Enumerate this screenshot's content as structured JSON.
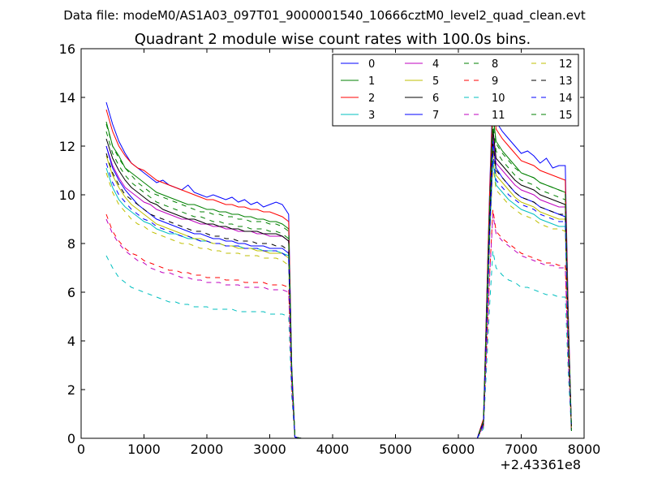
{
  "figure": {
    "suptitle": "Data file: modeM0/AS1A03_097T01_9000001540_10666cztM0_level2_quad_clean.evt"
  },
  "chart_data": {
    "type": "line",
    "title": "Quadrant 2 module wise count rates with 100.0s bins.",
    "xlabel": "",
    "ylabel": "",
    "x_offset_label": "+2.43361e8",
    "xlim": [
      0,
      8000
    ],
    "ylim": [
      0,
      16
    ],
    "x_ticks": [
      0,
      1000,
      2000,
      3000,
      4000,
      5000,
      6000,
      7000,
      8000
    ],
    "y_ticks": [
      0,
      2,
      4,
      6,
      8,
      10,
      12,
      14,
      16
    ],
    "grid": false,
    "legend_position": "top-right",
    "legend_columns": 4,
    "x": [
      400,
      500,
      600,
      700,
      800,
      900,
      1000,
      1100,
      1200,
      1300,
      1400,
      1500,
      1600,
      1700,
      1800,
      1900,
      2000,
      2100,
      2200,
      2300,
      2400,
      2500,
      2600,
      2700,
      2800,
      2900,
      3000,
      3100,
      3200,
      3300,
      3350,
      3400,
      3500,
      4000,
      5000,
      6000,
      6300,
      6400,
      6500,
      6550,
      6600,
      6700,
      6800,
      6900,
      7000,
      7100,
      7200,
      7300,
      7400,
      7500,
      7600,
      7700,
      7750,
      7800
    ],
    "series": [
      {
        "name": "0",
        "color": "#0000ff",
        "dash": "solid",
        "values": [
          13.8,
          12.9,
          12.2,
          11.7,
          11.3,
          11.1,
          10.9,
          10.7,
          10.5,
          10.6,
          10.4,
          10.3,
          10.2,
          10.4,
          10.1,
          10.0,
          9.9,
          10.0,
          9.9,
          9.8,
          9.9,
          9.7,
          9.8,
          9.6,
          9.7,
          9.5,
          9.6,
          9.7,
          9.6,
          9.2,
          3.0,
          0.05,
          0,
          0,
          0,
          0,
          0,
          0.8,
          10.5,
          14.3,
          13.0,
          12.6,
          12.3,
          12.0,
          11.7,
          11.8,
          11.6,
          11.3,
          11.5,
          11.1,
          11.2,
          11.2,
          5.0,
          0.3
        ]
      },
      {
        "name": "1",
        "color": "#008000",
        "dash": "solid",
        "values": [
          13.0,
          12.0,
          11.6,
          11.1,
          10.9,
          10.7,
          10.5,
          10.3,
          10.1,
          10.0,
          9.9,
          9.8,
          9.7,
          9.6,
          9.6,
          9.5,
          9.4,
          9.4,
          9.3,
          9.3,
          9.2,
          9.2,
          9.1,
          9.1,
          9.0,
          9.0,
          8.9,
          8.9,
          8.8,
          8.6,
          2.8,
          0.05,
          0,
          0,
          0,
          0,
          0,
          0.7,
          10.0,
          13.3,
          12.2,
          11.8,
          11.5,
          11.2,
          10.9,
          10.8,
          10.7,
          10.5,
          10.4,
          10.3,
          10.2,
          10.1,
          4.5,
          0.3
        ]
      },
      {
        "name": "2",
        "color": "#ff0000",
        "dash": "solid",
        "values": [
          13.5,
          12.6,
          12.0,
          11.6,
          11.3,
          11.1,
          11.0,
          10.8,
          10.6,
          10.5,
          10.4,
          10.3,
          10.2,
          10.1,
          10.0,
          9.9,
          9.8,
          9.8,
          9.7,
          9.6,
          9.6,
          9.5,
          9.5,
          9.4,
          9.4,
          9.3,
          9.3,
          9.2,
          9.1,
          8.9,
          2.9,
          0.05,
          0,
          0,
          0,
          0,
          0,
          0.8,
          10.3,
          13.9,
          12.7,
          12.3,
          12.0,
          11.7,
          11.4,
          11.3,
          11.2,
          11.0,
          10.9,
          10.8,
          10.7,
          10.6,
          4.8,
          0.3
        ]
      },
      {
        "name": "3",
        "color": "#00bfbf",
        "dash": "solid",
        "values": [
          11.1,
          10.3,
          9.8,
          9.5,
          9.3,
          9.1,
          8.9,
          8.8,
          8.6,
          8.5,
          8.4,
          8.4,
          8.3,
          8.2,
          8.2,
          8.1,
          8.1,
          8.0,
          8.0,
          7.9,
          7.9,
          7.9,
          7.8,
          7.8,
          7.8,
          7.7,
          7.7,
          7.7,
          7.6,
          7.5,
          2.5,
          0.05,
          0,
          0,
          0,
          0,
          0,
          0.6,
          8.4,
          11.4,
          10.4,
          10.1,
          9.8,
          9.6,
          9.4,
          9.3,
          9.2,
          9.0,
          8.9,
          8.8,
          8.7,
          8.7,
          3.9,
          0.3
        ]
      },
      {
        "name": "4",
        "color": "#bf00bf",
        "dash": "solid",
        "values": [
          12.0,
          11.2,
          10.7,
          10.3,
          10.1,
          9.9,
          9.7,
          9.6,
          9.4,
          9.3,
          9.2,
          9.1,
          9.0,
          9.0,
          8.9,
          8.8,
          8.8,
          8.7,
          8.7,
          8.6,
          8.6,
          8.5,
          8.5,
          8.5,
          8.4,
          8.4,
          8.3,
          8.3,
          8.3,
          8.1,
          2.7,
          0.05,
          0,
          0,
          0,
          0,
          0,
          0.7,
          9.2,
          12.4,
          11.3,
          11.0,
          10.7,
          10.4,
          10.2,
          10.1,
          10.0,
          9.8,
          9.7,
          9.6,
          9.5,
          9.5,
          4.2,
          0.3
        ]
      },
      {
        "name": "5",
        "color": "#bfbf00",
        "dash": "solid",
        "values": [
          11.6,
          10.8,
          10.3,
          9.9,
          9.6,
          9.4,
          9.2,
          9.0,
          8.8,
          8.7,
          8.6,
          8.5,
          8.4,
          8.3,
          8.2,
          8.2,
          8.1,
          8.0,
          8.0,
          7.9,
          7.9,
          7.8,
          7.8,
          7.8,
          7.7,
          7.7,
          7.6,
          7.6,
          7.6,
          7.4,
          2.5,
          0.05,
          0,
          0,
          0,
          0,
          0,
          0.6,
          8.8,
          11.9,
          10.8,
          10.5,
          10.2,
          9.9,
          9.7,
          9.6,
          9.5,
          9.3,
          9.2,
          9.1,
          9.0,
          9.0,
          4.0,
          0.3
        ]
      },
      {
        "name": "6",
        "color": "#000000",
        "dash": "solid",
        "values": [
          12.3,
          11.5,
          11.0,
          10.6,
          10.3,
          10.1,
          9.9,
          9.7,
          9.6,
          9.4,
          9.3,
          9.2,
          9.1,
          9.0,
          9.0,
          8.9,
          8.8,
          8.8,
          8.7,
          8.7,
          8.6,
          8.6,
          8.5,
          8.5,
          8.5,
          8.4,
          8.4,
          8.4,
          8.3,
          8.1,
          2.7,
          0.05,
          0,
          0,
          0,
          0,
          0,
          0.7,
          9.3,
          12.7,
          11.5,
          11.2,
          10.9,
          10.6,
          10.4,
          10.3,
          10.2,
          10.0,
          9.9,
          9.8,
          9.7,
          9.6,
          4.3,
          0.3
        ]
      },
      {
        "name": "7",
        "color": "#0000ff",
        "dash": "solid",
        "values": [
          12.0,
          11.1,
          10.6,
          10.2,
          9.9,
          9.6,
          9.4,
          9.2,
          9.0,
          8.9,
          8.8,
          8.7,
          8.6,
          8.5,
          8.4,
          8.4,
          8.3,
          8.2,
          8.2,
          8.1,
          8.1,
          8.0,
          8.0,
          7.9,
          7.9,
          7.9,
          7.8,
          7.8,
          7.8,
          7.6,
          2.6,
          0.05,
          0,
          0,
          0,
          0,
          0,
          0.6,
          9.0,
          12.2,
          11.1,
          10.7,
          10.4,
          10.1,
          9.9,
          9.8,
          9.7,
          9.5,
          9.4,
          9.3,
          9.2,
          9.1,
          4.1,
          0.3
        ]
      },
      {
        "name": "8",
        "color": "#008000",
        "dash": "dashed",
        "values": [
          12.6,
          11.7,
          11.2,
          10.8,
          10.5,
          10.3,
          10.1,
          9.9,
          9.7,
          9.6,
          9.5,
          9.4,
          9.3,
          9.2,
          9.1,
          9.1,
          9.0,
          8.9,
          8.9,
          8.8,
          8.8,
          8.7,
          8.7,
          8.6,
          8.6,
          8.6,
          8.5,
          8.5,
          8.4,
          8.2,
          2.8,
          0.05,
          0,
          0,
          0,
          0,
          0,
          0.7,
          9.6,
          13.0,
          11.8,
          11.4,
          11.1,
          10.8,
          10.6,
          10.5,
          10.4,
          10.2,
          10.1,
          10.0,
          9.9,
          9.8,
          4.4,
          0.3
        ]
      },
      {
        "name": "9",
        "color": "#ff0000",
        "dash": "dashed",
        "values": [
          9.2,
          8.5,
          8.1,
          7.8,
          7.6,
          7.5,
          7.3,
          7.2,
          7.1,
          7.0,
          6.9,
          6.9,
          6.8,
          6.8,
          6.7,
          6.7,
          6.6,
          6.6,
          6.6,
          6.5,
          6.5,
          6.5,
          6.4,
          6.4,
          6.4,
          6.4,
          6.3,
          6.3,
          6.3,
          6.2,
          2.1,
          0.05,
          0,
          0,
          0,
          0,
          0,
          0.5,
          6.9,
          9.4,
          8.5,
          8.2,
          8.0,
          7.8,
          7.6,
          7.5,
          7.4,
          7.3,
          7.2,
          7.2,
          7.1,
          7.1,
          3.2,
          0.3
        ]
      },
      {
        "name": "10",
        "color": "#00bfbf",
        "dash": "dashed",
        "values": [
          7.5,
          7.0,
          6.6,
          6.4,
          6.2,
          6.1,
          6.0,
          5.9,
          5.8,
          5.7,
          5.6,
          5.6,
          5.5,
          5.5,
          5.4,
          5.4,
          5.4,
          5.3,
          5.3,
          5.3,
          5.3,
          5.2,
          5.2,
          5.2,
          5.2,
          5.2,
          5.1,
          5.1,
          5.1,
          5.0,
          1.7,
          0.05,
          0,
          0,
          0,
          0,
          0,
          0.4,
          5.6,
          7.7,
          7.0,
          6.7,
          6.5,
          6.4,
          6.2,
          6.2,
          6.1,
          6.0,
          5.9,
          5.9,
          5.8,
          5.8,
          2.6,
          0.3
        ]
      },
      {
        "name": "11",
        "color": "#bf00bf",
        "dash": "dashed",
        "values": [
          9.0,
          8.4,
          8.0,
          7.7,
          7.5,
          7.3,
          7.2,
          7.0,
          6.9,
          6.8,
          6.8,
          6.7,
          6.6,
          6.6,
          6.5,
          6.5,
          6.4,
          6.4,
          6.4,
          6.3,
          6.3,
          6.3,
          6.2,
          6.2,
          6.2,
          6.2,
          6.1,
          6.1,
          6.1,
          6.0,
          2.0,
          0.05,
          0,
          0,
          0,
          0,
          0,
          0.5,
          6.8,
          9.2,
          8.4,
          8.1,
          7.9,
          7.7,
          7.5,
          7.4,
          7.3,
          7.2,
          7.1,
          7.1,
          7.0,
          7.0,
          3.1,
          0.3
        ]
      },
      {
        "name": "12",
        "color": "#bfbf00",
        "dash": "dashed",
        "values": [
          10.9,
          10.1,
          9.6,
          9.3,
          9.0,
          8.8,
          8.7,
          8.5,
          8.4,
          8.3,
          8.2,
          8.1,
          8.0,
          8.0,
          7.9,
          7.8,
          7.8,
          7.7,
          7.7,
          7.6,
          7.6,
          7.6,
          7.5,
          7.5,
          7.5,
          7.4,
          7.4,
          7.4,
          7.3,
          7.1,
          2.4,
          0.05,
          0,
          0,
          0,
          0,
          0,
          0.6,
          8.3,
          11.2,
          10.2,
          9.9,
          9.6,
          9.4,
          9.2,
          9.1,
          9.0,
          8.8,
          8.7,
          8.6,
          8.6,
          8.5,
          3.8,
          0.3
        ]
      },
      {
        "name": "13",
        "color": "#000000",
        "dash": "dashed",
        "values": [
          11.7,
          10.9,
          10.4,
          10.0,
          9.8,
          9.6,
          9.4,
          9.2,
          9.1,
          9.0,
          8.9,
          8.8,
          8.7,
          8.6,
          8.5,
          8.5,
          8.4,
          8.3,
          8.3,
          8.2,
          8.2,
          8.1,
          8.1,
          8.1,
          8.0,
          8.0,
          8.0,
          7.9,
          7.9,
          7.7,
          2.6,
          0.05,
          0,
          0,
          0,
          0,
          0,
          0.6,
          8.9,
          12.1,
          11.0,
          10.7,
          10.4,
          10.1,
          9.9,
          9.8,
          9.7,
          9.5,
          9.4,
          9.3,
          9.2,
          9.2,
          4.1,
          0.3
        ]
      },
      {
        "name": "14",
        "color": "#0000ff",
        "dash": "dashed",
        "values": [
          11.3,
          10.5,
          10.0,
          9.7,
          9.4,
          9.2,
          9.0,
          8.9,
          8.7,
          8.6,
          8.5,
          8.4,
          8.3,
          8.3,
          8.2,
          8.1,
          8.1,
          8.0,
          8.0,
          7.9,
          7.9,
          7.9,
          7.8,
          7.8,
          7.8,
          7.7,
          7.7,
          7.7,
          7.6,
          7.4,
          2.5,
          0.05,
          0,
          0,
          0,
          0,
          0,
          0.6,
          8.6,
          11.7,
          10.6,
          10.3,
          10.0,
          9.8,
          9.6,
          9.5,
          9.4,
          9.2,
          9.1,
          9.0,
          8.9,
          8.9,
          4.0,
          0.3
        ]
      },
      {
        "name": "15",
        "color": "#008000",
        "dash": "dashed",
        "values": [
          12.9,
          12.0,
          11.5,
          11.1,
          10.8,
          10.5,
          10.3,
          10.1,
          10.0,
          9.9,
          9.8,
          9.7,
          9.6,
          9.5,
          9.4,
          9.3,
          9.3,
          9.2,
          9.2,
          9.1,
          9.1,
          9.0,
          9.0,
          8.9,
          8.9,
          8.9,
          8.8,
          8.8,
          8.7,
          8.5,
          2.9,
          0.05,
          0,
          0,
          0,
          0,
          0,
          0.7,
          9.9,
          13.3,
          12.1,
          11.7,
          11.4,
          11.1,
          10.9,
          10.8,
          10.7,
          10.5,
          10.4,
          10.3,
          10.2,
          10.1,
          4.5,
          0.3
        ]
      }
    ]
  }
}
